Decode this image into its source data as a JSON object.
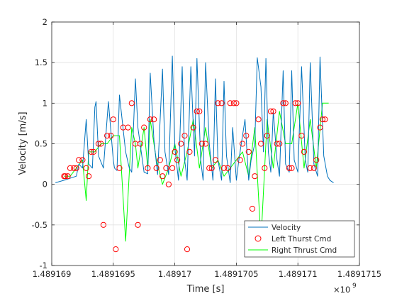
{
  "chart_data": {
    "type": "line",
    "title": "",
    "xlabel": "Time [s]",
    "ylabel": "Velocity [m/s]",
    "x_exponent_label": "×10",
    "x_exponent_power": "9",
    "xlim": [
      1.489169,
      1.4891715
    ],
    "ylim": [
      -1,
      2
    ],
    "x_tick_values": [
      1.489169,
      1.4891695,
      1.48917,
      1.4891705,
      1.489171,
      1.4891715
    ],
    "x_tick_labels": [
      "1.489169",
      "1.4891695",
      "1.48917",
      "1.4891705",
      "1.489171",
      "1.4891715"
    ],
    "y_tick_values": [
      -1,
      -0.5,
      0,
      0.5,
      1,
      1.5,
      2
    ],
    "y_tick_labels": [
      "-1",
      "-0.5",
      "0",
      "0.5",
      "1",
      "1.5",
      "2"
    ],
    "grid": true,
    "legend_position": "bottom-right",
    "colors": {
      "velocity": "#0072bd",
      "left": "#ff0000",
      "right": "#00ff00"
    },
    "series": [
      {
        "name": "Velocity",
        "style": "line",
        "x": [
          1.48916903,
          1.4891691,
          1.4891692,
          1.48916922,
          1.48916925,
          1.48916928,
          1.4891693,
          1.48916933,
          1.48916935,
          1.48916936,
          1.48916938,
          1.48916942,
          1.48916946,
          1.4891695,
          1.48916951,
          1.48916953,
          1.48916955,
          1.4891696,
          1.48916963,
          1.48916965,
          1.48916968,
          1.4891697,
          1.48916975,
          1.48916978,
          1.4891698,
          1.48916983,
          1.48916986,
          1.4891699,
          1.48916992,
          1.48916995,
          1.48916998,
          1.48917,
          1.48917003,
          1.48917006,
          1.48917008,
          1.4891701,
          1.48917013,
          1.48917016,
          1.48917018,
          1.48917021,
          1.48917023,
          1.48917025,
          1.48917028,
          1.48917031,
          1.48917033,
          1.48917035,
          1.48917038,
          1.4891704,
          1.48917042,
          1.48917045,
          1.48917047,
          1.4891705,
          1.48917052,
          1.48917055,
          1.48917057,
          1.4891706,
          1.48917062,
          1.48917065,
          1.48917067,
          1.4891707,
          1.48917072,
          1.48917074,
          1.48917076,
          1.48917078,
          1.4891708,
          1.48917083,
          1.48917085,
          1.48917088,
          1.4891709,
          1.48917093,
          1.48917095,
          1.48917097,
          1.489171,
          1.48917103,
          1.48917106,
          1.48917108,
          1.4891711,
          1.48917113,
          1.48917116,
          1.48917118,
          1.48917121,
          1.48917124,
          1.48917126,
          1.48917129
        ],
        "y": [
          0.02,
          0.05,
          0.1,
          0.25,
          0.2,
          0.8,
          0.25,
          0.2,
          0.95,
          1.02,
          0.35,
          0.2,
          1.02,
          0.3,
          0.2,
          0.17,
          1.1,
          0.4,
          0.2,
          0.15,
          1.3,
          0.7,
          0.15,
          0.13,
          1.37,
          0.55,
          0.12,
          1.42,
          0.4,
          0.12,
          1.58,
          0.45,
          0.05,
          1.45,
          0.3,
          0.05,
          1.45,
          0.35,
          1.55,
          0.3,
          0.05,
          1.5,
          0.5,
          0.05,
          1.3,
          0.3,
          0.05,
          1.27,
          0.35,
          0.02,
          0.7,
          0.05,
          0.3,
          0.6,
          0.8,
          0.05,
          0.3,
          0.5,
          1.56,
          1.2,
          0.4,
          1.55,
          0.4,
          0.15,
          0.9,
          0.3,
          0.1,
          1.4,
          0.25,
          0.15,
          1.4,
          0.3,
          0.15,
          1.45,
          0.3,
          0.15,
          1.5,
          0.25,
          0.1,
          1.57,
          0.35,
          0.1,
          0.05,
          0.02
        ]
      },
      {
        "name": "Left Thurst Cmd",
        "style": "markers",
        "x": [
          1.4891691,
          1.48916911,
          1.48916913,
          1.48916915,
          1.48916918,
          1.4891692,
          1.48916922,
          1.48916925,
          1.48916928,
          1.4891693,
          1.48916932,
          1.48916934,
          1.48916938,
          1.4891694,
          1.48916942,
          1.48916945,
          1.48916948,
          1.4891695,
          1.48916952,
          1.48916955,
          1.48916958,
          1.48916962,
          1.48916965,
          1.48916968,
          1.4891697,
          1.48916972,
          1.48916975,
          1.48916978,
          1.4891698,
          1.48916983,
          1.48916985,
          1.48916988,
          1.4891699,
          1.48916993,
          1.48916995,
          1.48916998,
          1.48917,
          1.48917002,
          1.48917005,
          1.48917008,
          1.4891701,
          1.48917012,
          1.48917015,
          1.48917018,
          1.4891702,
          1.48917022,
          1.48917025,
          1.48917028,
          1.4891703,
          1.48917033,
          1.48917035,
          1.48917038,
          1.4891704,
          1.48917043,
          1.48917045,
          1.48917048,
          1.4891705,
          1.48917053,
          1.48917055,
          1.48917058,
          1.4891706,
          1.48917063,
          1.48917065,
          1.48917068,
          1.4891707,
          1.48917073,
          1.48917075,
          1.48917078,
          1.4891708,
          1.48917083,
          1.48917085,
          1.48917088,
          1.4891709,
          1.48917093,
          1.48917095,
          1.48917098,
          1.489171,
          1.48917103,
          1.48917105,
          1.48917108,
          1.4891711,
          1.48917113,
          1.48917115,
          1.48917118,
          1.4891712,
          1.48917122
        ],
        "y": [
          0.1,
          0.1,
          0.1,
          0.2,
          0.2,
          0.2,
          0.3,
          0.3,
          0.2,
          0.1,
          0.4,
          0.4,
          0.5,
          0.5,
          -0.5,
          0.6,
          0.6,
          0.8,
          -0.8,
          0.2,
          0.7,
          0.7,
          1,
          0.5,
          -0.5,
          0.5,
          0.7,
          0.2,
          0.8,
          0.8,
          0.2,
          0.3,
          0.1,
          0.2,
          0,
          0.2,
          0.4,
          0.3,
          0.5,
          0.6,
          -0.8,
          0.4,
          0.7,
          0.9,
          0.9,
          0.5,
          0.5,
          0.2,
          0.2,
          0.3,
          1,
          1,
          0.2,
          0.2,
          1,
          1,
          1,
          0.3,
          0.5,
          0.6,
          0.4,
          -0.3,
          0.1,
          0.8,
          0.5,
          0.2,
          0.6,
          0.9,
          0.9,
          0.5,
          0.5,
          1,
          1,
          0.2,
          0.2,
          1,
          1,
          0.6,
          0.4,
          -0.5,
          0.2,
          0.2,
          0.3,
          0.7,
          0.8,
          0.8
        ]
      },
      {
        "name": "Right Thrust Cmd",
        "style": "line",
        "x": [
          1.4891691,
          1.48916915,
          1.4891692,
          1.48916925,
          1.48916928,
          1.4891693,
          1.48916935,
          1.4891694,
          1.48916945,
          1.4891695,
          1.48916955,
          1.4891696,
          1.48916965,
          1.48916968,
          1.4891697,
          1.48916975,
          1.48916978,
          1.4891698,
          1.48916985,
          1.4891699,
          1.48916995,
          1.48917,
          1.48917005,
          1.4891701,
          1.48917015,
          1.4891702,
          1.48917025,
          1.4891703,
          1.48917035,
          1.4891704,
          1.48917045,
          1.4891705,
          1.48917055,
          1.4891706,
          1.48917065,
          1.4891707,
          1.48917075,
          1.4891708,
          1.48917085,
          1.4891709,
          1.48917095,
          1.489171,
          1.48917105,
          1.4891711,
          1.48917115,
          1.4891712,
          1.48917125
        ],
        "y": [
          0.1,
          0.1,
          0.2,
          0.3,
          -0.2,
          0.4,
          0.4,
          0.5,
          0.5,
          0.6,
          0.6,
          -0.7,
          0.7,
          0.5,
          0.2,
          0.7,
          0.2,
          0.8,
          0.3,
          0,
          0.2,
          0.5,
          0.1,
          0.4,
          0.8,
          0.2,
          0.7,
          0.2,
          0.3,
          0.1,
          0.2,
          0.3,
          0.4,
          0.1,
          0.7,
          -0.7,
          0.8,
          0.2,
          0.9,
          0.5,
          0.5,
          1,
          0.2,
          0.8,
          0.2,
          1,
          1
        ]
      }
    ]
  }
}
